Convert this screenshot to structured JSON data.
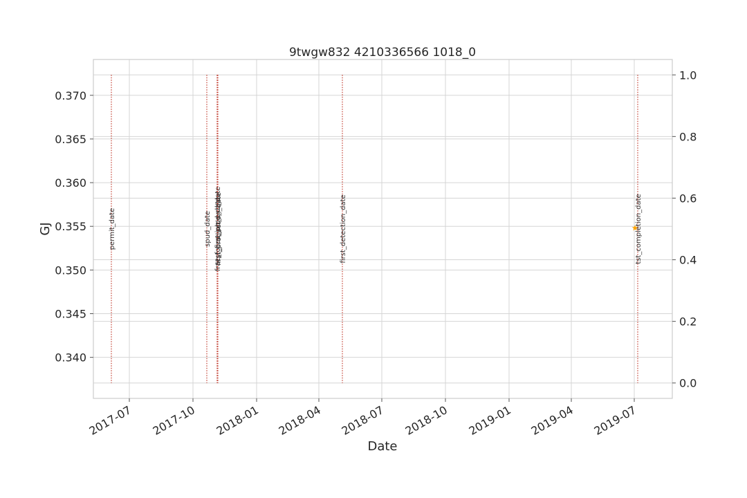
{
  "chart_data": {
    "type": "line",
    "title": "9twgw832 4210336566 1018_0",
    "xlabel": "Date",
    "ylabel": "GJ",
    "ylabel_color": "#1f77b4",
    "grid": true,
    "x_axis": {
      "type": "date",
      "range": [
        "2017-05-10",
        "2019-08-25"
      ],
      "ticks": [
        "2017-07-01",
        "2017-10-01",
        "2018-01-01",
        "2018-04-01",
        "2018-07-01",
        "2018-10-01",
        "2019-01-01",
        "2019-04-01",
        "2019-07-01"
      ],
      "tick_labels": [
        "2017-07",
        "2017-10",
        "2018-01",
        "2018-04",
        "2018-07",
        "2018-10",
        "2019-01",
        "2019-04",
        "2019-07"
      ]
    },
    "y_axis_left": {
      "range": [
        0.3353,
        0.3741
      ],
      "ticks": [
        0.34,
        0.345,
        0.35,
        0.355,
        0.36,
        0.365,
        0.37
      ],
      "tick_labels": [
        "0.340",
        "0.345",
        "0.350",
        "0.355",
        "0.360",
        "0.365",
        "0.370"
      ]
    },
    "y_axis_right": {
      "range": [
        -0.05,
        1.05
      ],
      "ticks": [
        0.0,
        0.2,
        0.4,
        0.6,
        0.8,
        1.0
      ],
      "tick_labels": [
        "0.0",
        "0.2",
        "0.4",
        "0.6",
        "0.8",
        "1.0"
      ]
    },
    "series": [
      {
        "marker": "star",
        "color": "#ffa500",
        "points": [
          {
            "x": "2019-07-02",
            "y": 0.3548
          }
        ]
      }
    ],
    "event_lines": {
      "color": "#c0392b",
      "style": "dotted",
      "y_range_right": [
        0.0,
        1.0
      ],
      "events": [
        {
          "date": "2017-06-05",
          "label": "permit_date"
        },
        {
          "date": "2017-10-21",
          "label": "spud_date"
        },
        {
          "date": "2017-11-05",
          "label": "frac_focus_job_end_date"
        },
        {
          "date": "2017-11-05",
          "label": "tst_first_prod_date"
        },
        {
          "date": "2017-11-06",
          "label": "first_production_date"
        },
        {
          "date": "2018-05-05",
          "label": "first_detection_date"
        },
        {
          "date": "2019-07-06",
          "label": "tst_completion_date"
        }
      ]
    }
  }
}
